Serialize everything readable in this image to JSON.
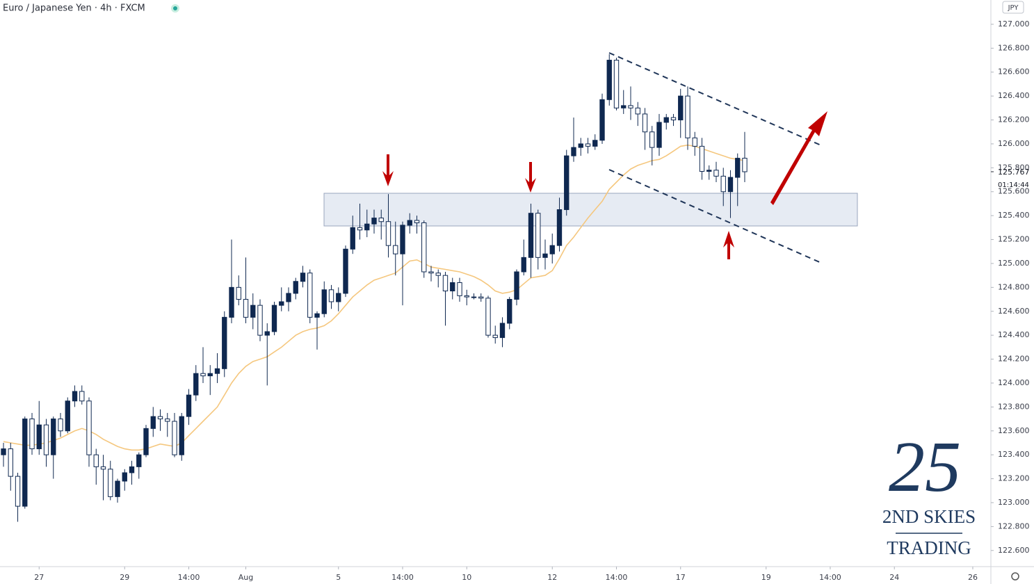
{
  "chart_data": {
    "type": "candlestick",
    "title": "Euro / Japanese Yen · 4h · FXCM",
    "currency": "JPY",
    "countdown": "01:14:44",
    "last_price": 125.767,
    "logo": {
      "mark": "25",
      "line1": "2ND SKIES",
      "line2": "TRADING"
    },
    "up_color": "#0f2850",
    "down_color": "#ffffff",
    "ma_color": "#f5c77e",
    "ylim": [
      122.465,
      127.203
    ],
    "xlim": [
      -0.49,
      138.54
    ],
    "yticks": [
      {
        "value": 122.6,
        "label": "122.600"
      },
      {
        "value": 122.8,
        "label": "122.800"
      },
      {
        "value": 123,
        "label": "123.000"
      },
      {
        "value": 123.2,
        "label": "123.200"
      },
      {
        "value": 123.4,
        "label": "123.400"
      },
      {
        "value": 123.6,
        "label": "123.600"
      },
      {
        "value": 123.8,
        "label": "123.800"
      },
      {
        "value": 124,
        "label": "124.000"
      },
      {
        "value": 124.2,
        "label": "124.200"
      },
      {
        "value": 124.4,
        "label": "124.400"
      },
      {
        "value": 124.6,
        "label": "124.600"
      },
      {
        "value": 124.8,
        "label": "124.800"
      },
      {
        "value": 125,
        "label": "125.000"
      },
      {
        "value": 125.2,
        "label": "125.200"
      },
      {
        "value": 125.4,
        "label": "125.400"
      },
      {
        "value": 125.6,
        "label": "125.600"
      },
      {
        "value": 125.8,
        "label": "125.800"
      },
      {
        "value": 126,
        "label": "126.000"
      },
      {
        "value": 126.2,
        "label": "126.200"
      },
      {
        "value": 126.4,
        "label": "126.400"
      },
      {
        "value": 126.6,
        "label": "126.600"
      },
      {
        "value": 126.8,
        "label": "126.800"
      },
      {
        "value": 127,
        "label": "127.000"
      }
    ],
    "xticks": [
      {
        "value": 5,
        "label": "27"
      },
      {
        "value": 17,
        "label": "29"
      },
      {
        "value": 26,
        "label": "14:00"
      },
      {
        "value": 34,
        "label": "Aug"
      },
      {
        "value": 47,
        "label": "5"
      },
      {
        "value": 56,
        "label": "14:00"
      },
      {
        "value": 65,
        "label": "10"
      },
      {
        "value": 77,
        "label": "12"
      },
      {
        "value": 86,
        "label": "14:00"
      },
      {
        "value": 95,
        "label": "17"
      },
      {
        "value": 107,
        "label": "19"
      },
      {
        "value": 116,
        "label": "14:00"
      },
      {
        "value": 125,
        "label": "24"
      },
      {
        "value": 136,
        "label": "26"
      }
    ],
    "open": [
      123.4,
      123.45,
      123.22,
      122.97,
      123.7,
      123.45,
      123.65,
      123.4,
      123.7,
      123.6,
      123.85,
      123.93,
      123.85,
      123.4,
      123.3,
      123.28,
      123.05,
      123.18,
      123.25,
      123.3,
      123.4,
      123.62,
      123.72,
      123.7,
      123.68,
      123.4,
      123.72,
      123.9,
      124.08,
      124.06,
      124.08,
      124.12,
      124.55,
      124.8,
      124.7,
      124.55,
      124.65,
      124.4,
      124.43,
      124.65,
      124.68,
      124.75,
      124.85,
      124.92,
      124.55,
      124.58,
      124.78,
      124.68,
      124.75,
      125.12,
      125.3,
      125.28,
      125.33,
      125.38,
      125.35,
      125.15,
      125.08,
      125.32,
      125.36,
      125.34,
      124.93,
      124.92,
      124.9,
      124.77,
      124.84,
      124.73,
      124.72,
      124.72,
      124.71,
      124.4,
      124.38,
      124.5,
      124.7,
      124.93,
      125.05,
      125.42,
      125.05,
      125.08,
      125.15,
      125.45,
      125.9,
      125.97,
      126.0,
      125.98,
      126.03,
      126.37,
      126.7,
      126.3,
      126.32,
      126.3,
      126.25,
      126.1,
      125.97,
      126.18,
      126.22,
      126.2,
      126.4,
      126.05,
      125.98,
      125.77,
      125.78,
      125.73,
      125.6,
      125.72,
      125.88
    ],
    "high": [
      123.5,
      123.5,
      123.25,
      123.72,
      123.75,
      123.85,
      123.7,
      123.72,
      123.75,
      123.88,
      123.98,
      123.98,
      123.88,
      123.45,
      123.4,
      123.35,
      123.2,
      123.28,
      123.35,
      123.42,
      123.65,
      123.8,
      123.78,
      123.75,
      123.75,
      123.75,
      123.95,
      124.15,
      124.3,
      124.15,
      124.25,
      124.6,
      125.2,
      124.9,
      125.05,
      124.75,
      124.7,
      124.5,
      124.68,
      124.8,
      124.8,
      124.88,
      124.98,
      124.95,
      124.6,
      124.85,
      124.82,
      124.8,
      125.15,
      125.4,
      125.5,
      125.45,
      125.45,
      125.45,
      125.58,
      125.35,
      125.35,
      125.42,
      125.4,
      125.36,
      124.98,
      124.95,
      124.93,
      124.88,
      124.88,
      124.78,
      124.75,
      124.75,
      124.73,
      124.48,
      124.55,
      124.72,
      124.95,
      125.2,
      125.5,
      125.45,
      125.2,
      125.25,
      125.55,
      125.95,
      126.22,
      126.05,
      126.05,
      126.08,
      126.42,
      126.75,
      126.72,
      126.45,
      126.48,
      126.35,
      126.3,
      126.15,
      126.25,
      126.25,
      126.25,
      126.46,
      126.48,
      126.1,
      126.05,
      125.82,
      125.85,
      125.8,
      125.78,
      125.92,
      126.1
    ],
    "low": [
      123.3,
      123.1,
      122.84,
      122.95,
      123.4,
      123.4,
      123.3,
      123.2,
      123.55,
      123.58,
      123.8,
      123.82,
      123.3,
      123.15,
      123.02,
      123.02,
      123.0,
      123.1,
      123.15,
      123.2,
      123.38,
      123.55,
      123.6,
      123.55,
      123.38,
      123.35,
      123.65,
      123.85,
      124.0,
      123.9,
      124.0,
      124.05,
      124.5,
      124.65,
      124.5,
      124.45,
      124.35,
      123.98,
      124.4,
      124.6,
      124.6,
      124.7,
      124.8,
      124.5,
      124.28,
      124.55,
      124.62,
      124.6,
      124.72,
      125.08,
      125.2,
      125.22,
      125.25,
      125.2,
      125.05,
      124.9,
      124.65,
      125.25,
      125.25,
      124.88,
      124.85,
      124.8,
      124.48,
      124.7,
      124.68,
      124.65,
      124.7,
      124.68,
      124.38,
      124.33,
      124.3,
      124.45,
      124.65,
      124.9,
      124.88,
      124.95,
      124.95,
      125.0,
      125.1,
      125.4,
      125.85,
      125.9,
      125.92,
      125.95,
      126.0,
      126.32,
      126.28,
      126.25,
      126.2,
      126.15,
      125.95,
      125.82,
      125.9,
      126.12,
      126.15,
      126.05,
      125.95,
      125.9,
      125.7,
      125.7,
      125.68,
      125.48,
      125.38,
      125.48,
      125.68
    ],
    "close": [
      123.45,
      123.22,
      122.97,
      123.7,
      123.45,
      123.65,
      123.4,
      123.7,
      123.6,
      123.85,
      123.93,
      123.85,
      123.4,
      123.3,
      123.28,
      123.05,
      123.18,
      123.25,
      123.3,
      123.4,
      123.62,
      123.72,
      123.7,
      123.68,
      123.4,
      123.72,
      123.9,
      124.08,
      124.06,
      124.08,
      124.12,
      124.55,
      124.8,
      124.7,
      124.55,
      124.65,
      124.4,
      124.43,
      124.65,
      124.68,
      124.75,
      124.85,
      124.92,
      124.55,
      124.58,
      124.78,
      124.68,
      124.75,
      125.12,
      125.3,
      125.28,
      125.33,
      125.38,
      125.35,
      125.15,
      125.08,
      125.32,
      125.36,
      125.34,
      124.93,
      124.92,
      124.9,
      124.77,
      124.84,
      124.73,
      124.72,
      124.72,
      124.71,
      124.4,
      124.38,
      124.5,
      124.7,
      124.93,
      125.05,
      125.42,
      125.05,
      125.08,
      125.15,
      125.45,
      125.9,
      125.97,
      126.0,
      125.98,
      126.03,
      126.37,
      126.7,
      126.3,
      126.32,
      126.3,
      126.25,
      126.1,
      125.97,
      126.18,
      126.22,
      126.2,
      126.4,
      126.05,
      125.98,
      125.77,
      125.78,
      125.73,
      125.6,
      125.72,
      125.88,
      125.767
    ],
    "ma": [
      123.51,
      123.5,
      123.49,
      123.48,
      123.48,
      123.49,
      123.5,
      123.52,
      123.54,
      123.57,
      123.6,
      123.62,
      123.6,
      123.57,
      123.53,
      123.5,
      123.47,
      123.45,
      123.44,
      123.44,
      123.45,
      123.47,
      123.49,
      123.48,
      123.47,
      123.5,
      123.56,
      123.62,
      123.68,
      123.74,
      123.8,
      123.9,
      124.0,
      124.08,
      124.14,
      124.18,
      124.2,
      124.22,
      124.26,
      124.3,
      124.35,
      124.4,
      124.43,
      124.45,
      124.46,
      124.48,
      124.52,
      124.58,
      124.65,
      124.72,
      124.77,
      124.82,
      124.86,
      124.88,
      124.9,
      124.92,
      124.97,
      125.02,
      125.03,
      125.0,
      124.97,
      124.96,
      124.95,
      124.94,
      124.93,
      124.91,
      124.89,
      124.86,
      124.82,
      124.77,
      124.75,
      124.76,
      124.78,
      124.83,
      124.88,
      124.89,
      124.9,
      124.94,
      125.04,
      125.15,
      125.22,
      125.3,
      125.38,
      125.45,
      125.52,
      125.62,
      125.68,
      125.74,
      125.79,
      125.82,
      125.84,
      125.86,
      125.87,
      125.9,
      125.94,
      125.98,
      125.99,
      125.98,
      125.96,
      125.94,
      125.92,
      125.9,
      125.88,
      125.87,
      125.86
    ]
  }
}
